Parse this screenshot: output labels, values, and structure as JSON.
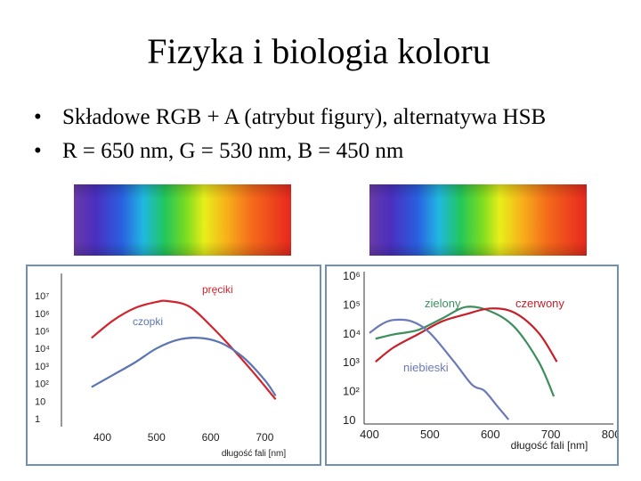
{
  "title": "Fizyka i biologia koloru",
  "bullets": [
    "Składowe RGB + A (atrybut figury), alternatywa HSB",
    "R = 650 nm, G = 530 nm, B = 450 nm"
  ],
  "colors": {
    "rods": "#d3232d",
    "cones": "#5b74b3",
    "green": "#3c8f5c",
    "red": "#c6202b",
    "blue": "#6b79b8",
    "frame": "#6f8fb6"
  },
  "chart_data": [
    {
      "type": "line",
      "xlabel": "długość fali [nm]",
      "x_ticks": [
        "400",
        "500",
        "600",
        "700"
      ],
      "y_ticks": [
        "10⁷",
        "10⁶",
        "10⁵",
        "10⁴",
        "10³",
        "10²",
        "10",
        "1"
      ],
      "ylim_exp": [
        0,
        7
      ],
      "series": [
        {
          "name": "pręciki",
          "x": [
            380,
            420,
            460,
            500,
            520,
            560,
            600,
            640,
            680,
            720
          ],
          "log10_y": [
            4.6,
            5.6,
            6.3,
            6.65,
            6.7,
            6.4,
            5.3,
            4.0,
            2.6,
            1.1
          ]
        },
        {
          "name": "czopki",
          "x": [
            380,
            420,
            460,
            500,
            540,
            580,
            620,
            660,
            700,
            720
          ],
          "log10_y": [
            1.8,
            2.5,
            3.2,
            4.0,
            4.5,
            4.6,
            4.3,
            3.5,
            2.2,
            1.3
          ]
        }
      ]
    },
    {
      "type": "line",
      "xlabel": "długość fali [nm]",
      "x_ticks": [
        "400",
        "500",
        "600",
        "700",
        "800"
      ],
      "y_ticks": [
        "10⁶",
        "10⁵",
        "10⁴",
        "10³",
        "10²",
        "10"
      ],
      "ylim_exp": [
        1,
        6
      ],
      "series": [
        {
          "name": "zielony",
          "x": [
            410,
            440,
            480,
            520,
            560,
            600,
            640,
            680,
            705
          ],
          "log10_y": [
            3.8,
            3.95,
            4.1,
            4.5,
            4.9,
            4.75,
            4.2,
            3.0,
            1.8
          ]
        },
        {
          "name": "czerwony",
          "x": [
            410,
            440,
            480,
            520,
            560,
            600,
            640,
            680,
            710
          ],
          "log10_y": [
            3.0,
            3.5,
            3.95,
            4.4,
            4.65,
            4.85,
            4.7,
            4.0,
            3.0
          ]
        },
        {
          "name": "niebieski",
          "x": [
            400,
            420,
            440,
            470,
            500,
            540,
            570,
            590,
            610,
            630
          ],
          "log10_y": [
            4.0,
            4.3,
            4.45,
            4.4,
            4.0,
            3.0,
            2.2,
            2.0,
            1.5,
            1.0
          ]
        }
      ]
    }
  ]
}
